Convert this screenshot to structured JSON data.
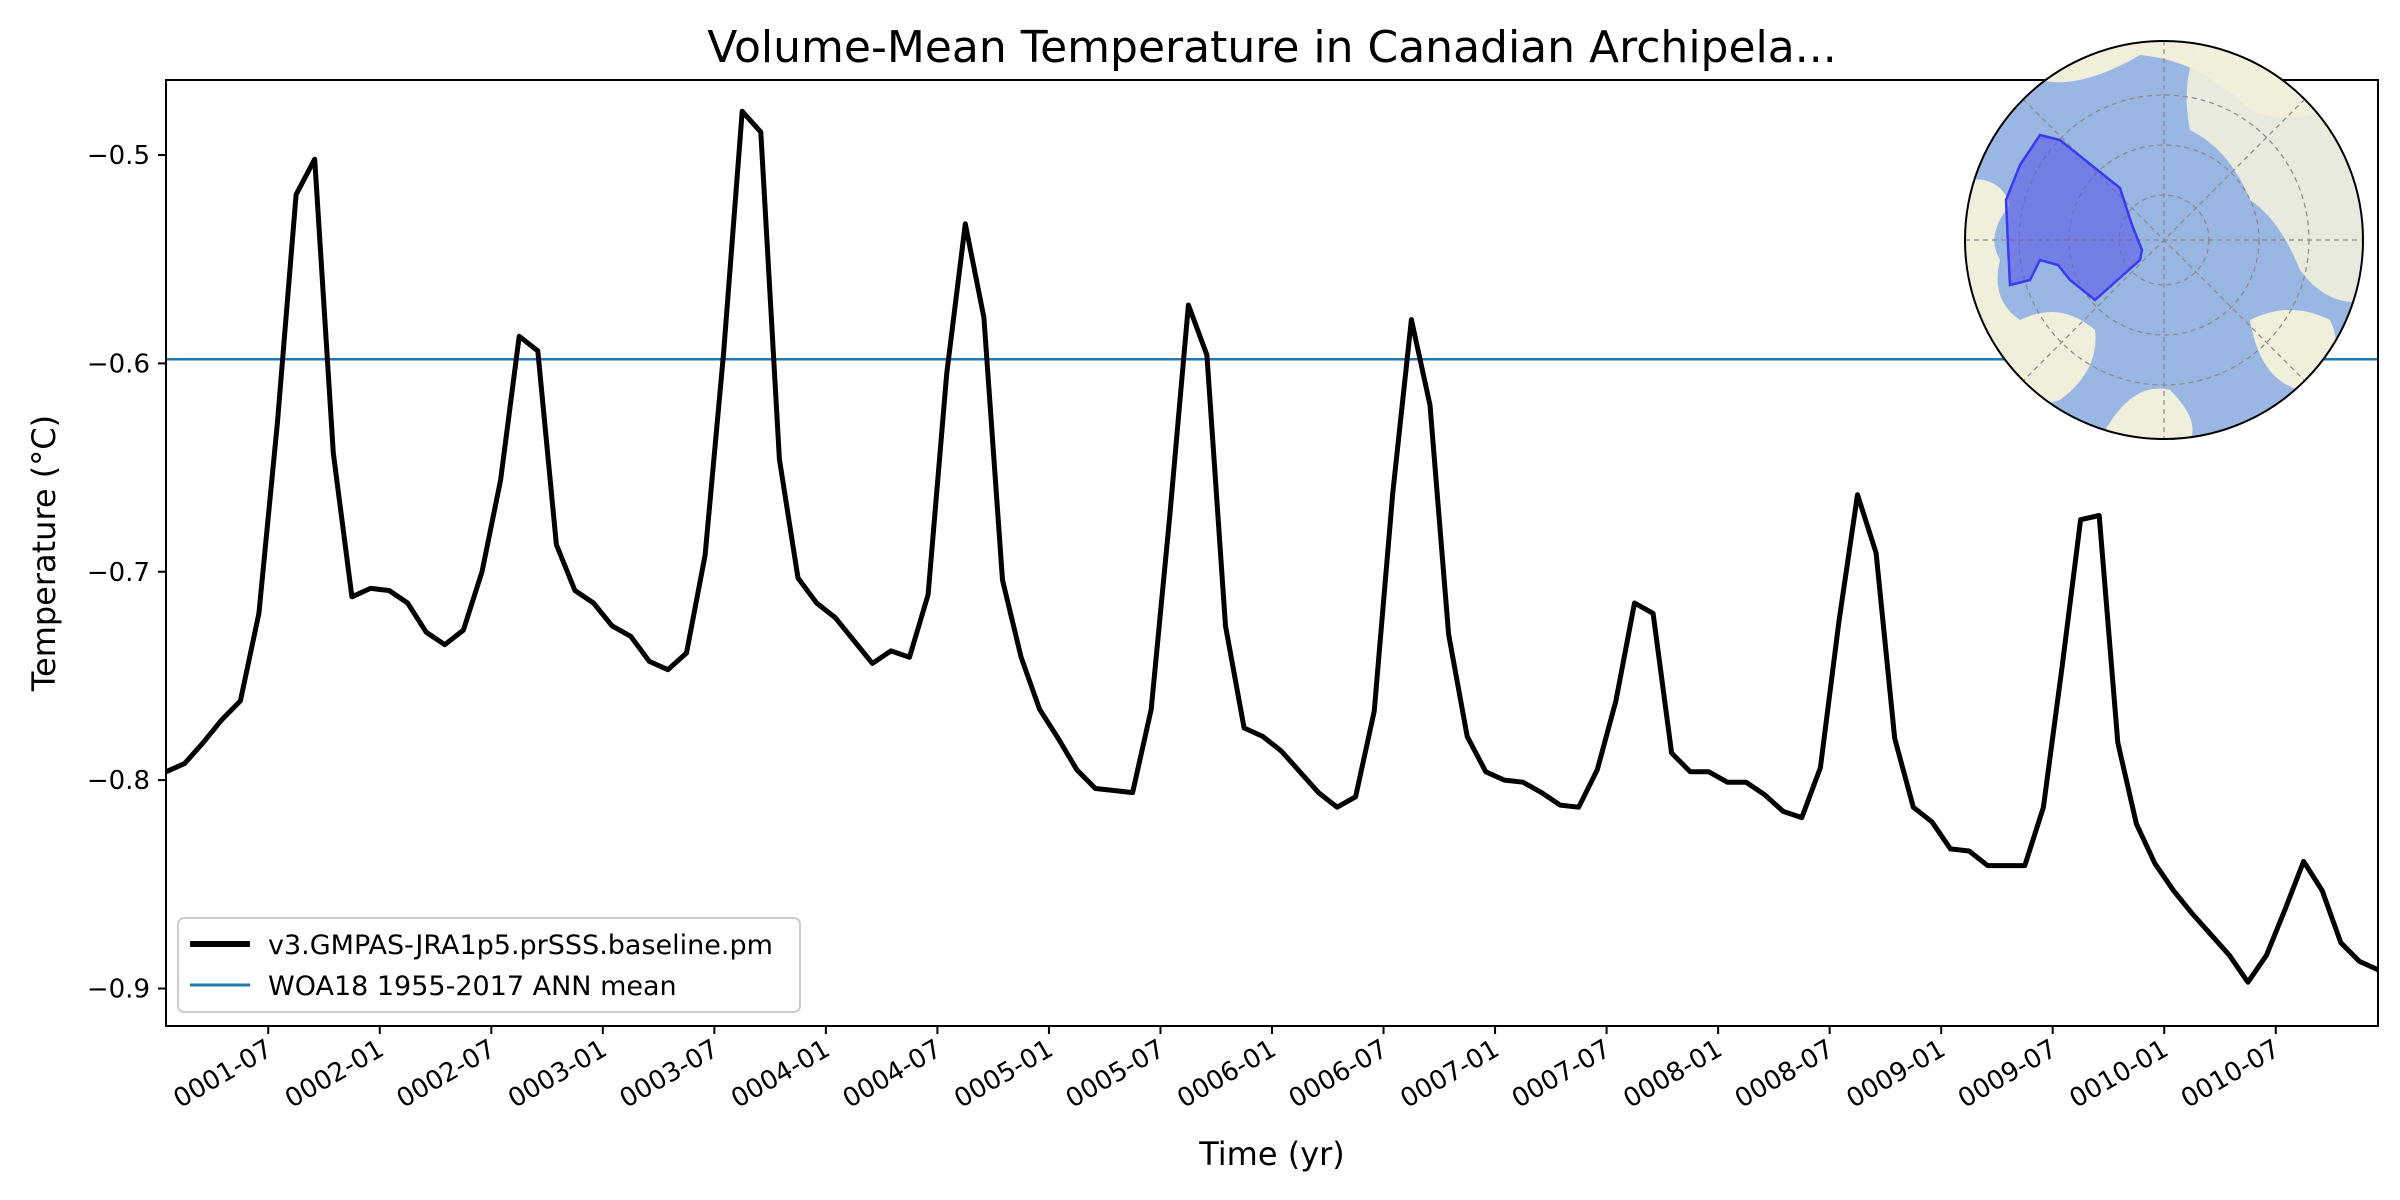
{
  "chart_data": {
    "type": "line",
    "title": "Volume-Mean Temperature in Canadian Archipela...",
    "xlabel": "Time (yr)",
    "ylabel": "Temperature ($^\\circ$C)",
    "ylabel_display": "Temperature (°C)",
    "xlim": [
      0,
      119
    ],
    "ylim": [
      -0.918,
      -0.464
    ],
    "y_ticks": [
      -0.9,
      -0.8,
      -0.7,
      -0.6,
      -0.5
    ],
    "y_tick_labels": [
      "−0.9",
      "−0.8",
      "−0.7",
      "−0.6",
      "−0.5"
    ],
    "x_ticks": [
      5.5,
      11.5,
      17.5,
      23.5,
      29.5,
      35.5,
      41.5,
      47.5,
      53.5,
      59.5,
      65.5,
      71.5,
      77.5,
      83.5,
      89.5,
      95.5,
      101.5,
      107.5,
      113.5
    ],
    "x_tick_labels": [
      "0001-07",
      "0002-01",
      "0002-07",
      "0003-01",
      "0003-07",
      "0004-01",
      "0004-07",
      "0005-01",
      "0005-07",
      "0006-01",
      "0006-07",
      "0007-01",
      "0007-07",
      "0008-01",
      "0008-07",
      "0009-01",
      "0009-07",
      "0010-01",
      "0010-07"
    ],
    "grid": false,
    "legend_position": "lower-left",
    "series": [
      {
        "name": "v3.GMPAS-JRA1p5.prSSS.baseline.pm",
        "color": "#000000",
        "x": [
          0,
          1,
          2,
          3,
          4,
          5,
          6,
          7,
          8,
          9,
          10,
          11,
          12,
          13,
          14,
          15,
          16,
          17,
          18,
          19,
          20,
          21,
          22,
          23,
          24,
          25,
          26,
          27,
          28,
          29,
          30,
          31,
          32,
          33,
          34,
          35,
          36,
          37,
          38,
          39,
          40,
          41,
          42,
          43,
          44,
          45,
          46,
          47,
          48,
          49,
          50,
          51,
          52,
          53,
          54,
          55,
          56,
          57,
          58,
          59,
          60,
          61,
          62,
          63,
          64,
          65,
          66,
          67,
          68,
          69,
          70,
          71,
          72,
          73,
          74,
          75,
          76,
          77,
          78,
          79,
          80,
          81,
          82,
          83,
          84,
          85,
          86,
          87,
          88,
          89,
          90,
          91,
          92,
          93,
          94,
          95,
          96,
          97,
          98,
          99,
          100,
          101,
          102,
          103,
          104,
          105,
          106,
          107,
          108,
          109,
          110,
          111,
          112,
          113,
          114,
          115,
          116,
          117,
          118,
          119
        ],
        "y": [
          -0.796,
          -0.792,
          -0.782,
          -0.771,
          -0.762,
          -0.72,
          -0.628,
          -0.519,
          -0.502,
          -0.643,
          -0.712,
          -0.708,
          -0.709,
          -0.715,
          -0.729,
          -0.735,
          -0.728,
          -0.7,
          -0.656,
          -0.587,
          -0.594,
          -0.687,
          -0.709,
          -0.715,
          -0.726,
          -0.731,
          -0.743,
          -0.747,
          -0.739,
          -0.692,
          -0.595,
          -0.479,
          -0.489,
          -0.646,
          -0.703,
          -0.715,
          -0.722,
          -0.733,
          -0.744,
          -0.738,
          -0.741,
          -0.711,
          -0.605,
          -0.533,
          -0.578,
          -0.704,
          -0.741,
          -0.766,
          -0.78,
          -0.795,
          -0.804,
          -0.805,
          -0.806,
          -0.766,
          -0.673,
          -0.572,
          -0.596,
          -0.726,
          -0.775,
          -0.779,
          -0.786,
          -0.796,
          -0.806,
          -0.813,
          -0.808,
          -0.767,
          -0.662,
          -0.579,
          -0.62,
          -0.73,
          -0.779,
          -0.796,
          -0.8,
          -0.801,
          -0.806,
          -0.812,
          -0.813,
          -0.795,
          -0.762,
          -0.715,
          -0.72,
          -0.787,
          -0.796,
          -0.796,
          -0.801,
          -0.801,
          -0.807,
          -0.815,
          -0.818,
          -0.794,
          -0.724,
          -0.663,
          -0.691,
          -0.78,
          -0.813,
          -0.82,
          -0.833,
          -0.834,
          -0.841,
          -0.841,
          -0.841,
          -0.813,
          -0.746,
          -0.675,
          -0.673,
          -0.782,
          -0.821,
          -0.84,
          -0.853,
          -0.864,
          -0.874,
          -0.884,
          -0.897,
          -0.884,
          -0.862,
          -0.839,
          -0.853,
          -0.878,
          -0.887,
          -0.891
        ]
      },
      {
        "name": "WOA18 1955-2017 ANN mean",
        "color": "#1f77b4",
        "x": [
          0,
          119
        ],
        "y": [
          -0.598,
          -0.598
        ]
      }
    ],
    "inset": {
      "type": "map",
      "description": "north polar stereographic map",
      "land_color": "#efefdc",
      "ocean_color": "#9ab7e3",
      "region_color": "#5a5ae6"
    }
  }
}
